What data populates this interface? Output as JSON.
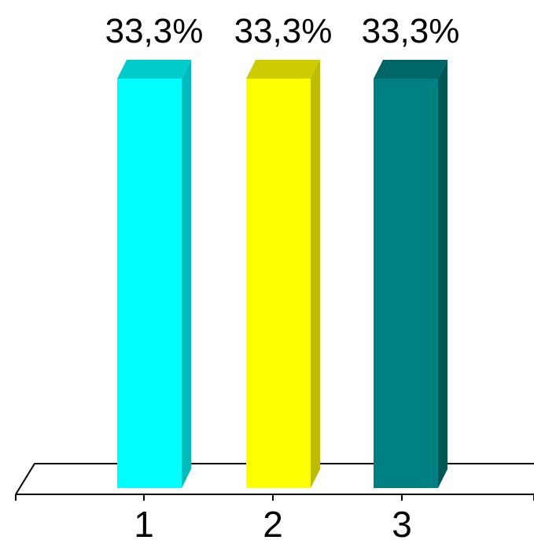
{
  "chart_data": {
    "type": "bar",
    "categories": [
      "1",
      "2",
      "3"
    ],
    "values": [
      33.3,
      33.3,
      33.3
    ],
    "data_labels": [
      "33,3%",
      "33,3%",
      "33,3%"
    ],
    "bar_colors": [
      "#00FFFF",
      "#FFFF00",
      "#008080"
    ],
    "bar_top_colors": [
      "#00CCCC",
      "#CCCC00",
      "#006666"
    ],
    "bar_side_colors": [
      "#00BBBB",
      "#BBBB00",
      "#005555"
    ],
    "ylim": [
      0,
      33.3
    ],
    "grid": false,
    "legend": "none",
    "style": "3d"
  }
}
